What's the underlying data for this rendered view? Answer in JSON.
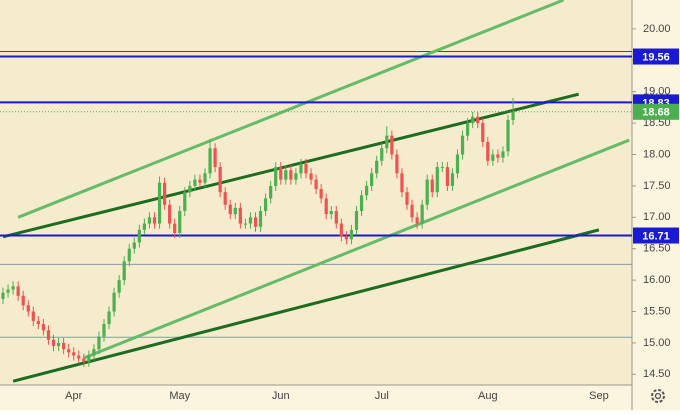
{
  "chart_data": {
    "type": "candlestick",
    "categories": [
      null,
      null,
      null,
      null,
      null,
      null,
      null,
      null,
      null,
      null,
      null,
      null,
      null,
      null,
      "Apr",
      null,
      null,
      null,
      null,
      null,
      null,
      null,
      null,
      null,
      null,
      null,
      null,
      null,
      null,
      null,
      null,
      null,
      null,
      null,
      null,
      "May",
      null,
      null,
      null,
      null,
      null,
      null,
      null,
      null,
      null,
      null,
      null,
      null,
      null,
      null,
      null,
      null,
      null,
      null,
      null,
      "Jun",
      null,
      null,
      null,
      null,
      null,
      null,
      null,
      null,
      null,
      null,
      null,
      null,
      null,
      null,
      null,
      null,
      null,
      null,
      null,
      "Jul",
      null,
      null,
      null,
      null,
      null,
      null,
      null,
      null,
      null,
      null,
      null,
      null,
      null,
      null,
      null,
      null,
      null,
      null,
      null,
      null,
      "Aug",
      null,
      null,
      null,
      null,
      null,
      null,
      null,
      null,
      null,
      null,
      null,
      null,
      null,
      null,
      null,
      null,
      null,
      null,
      null,
      null,
      null,
      "Sep"
    ],
    "open": [
      15.7,
      15.8,
      15.85,
      15.9,
      15.75,
      15.6,
      15.5,
      15.35,
      15.3,
      15.2,
      15.05,
      14.95,
      15.0,
      14.9,
      14.85,
      14.8,
      14.75,
      14.7,
      14.8,
      14.9,
      15.1,
      15.3,
      15.5,
      15.8,
      16.0,
      16.3,
      16.5,
      16.6,
      16.8,
      16.9,
      17.0,
      16.9,
      17.55,
      17.2,
      16.9,
      16.75,
      17.1,
      17.4,
      17.5,
      17.6,
      17.55,
      17.7,
      18.1,
      17.8,
      17.4,
      17.2,
      17.05,
      17.15,
      16.9,
      16.9,
      17.0,
      16.85,
      17.1,
      17.3,
      17.5,
      17.8,
      17.6,
      17.75,
      17.6,
      17.7,
      17.85,
      17.7,
      17.6,
      17.45,
      17.3,
      17.05,
      17.1,
      16.9,
      16.7,
      16.65,
      16.8,
      17.1,
      17.35,
      17.5,
      17.7,
      17.9,
      18.1,
      18.3,
      18.0,
      17.7,
      17.4,
      17.2,
      17.0,
      16.9,
      17.2,
      17.6,
      17.4,
      17.8,
      17.8,
      17.5,
      17.7,
      18.0,
      18.3,
      18.5,
      18.6,
      18.5,
      18.2,
      17.9,
      18.0,
      17.95,
      18.05,
      18.55,
      null,
      null,
      null,
      null,
      null,
      null,
      null,
      null,
      null,
      null,
      null,
      null,
      null,
      null,
      null,
      null,
      null
    ],
    "high": [
      15.88,
      15.93,
      15.98,
      15.98,
      15.83,
      15.68,
      15.58,
      15.43,
      15.38,
      15.28,
      15.13,
      15.08,
      15.08,
      14.98,
      14.93,
      14.88,
      14.83,
      14.88,
      14.98,
      15.18,
      15.38,
      15.58,
      15.88,
      16.08,
      16.38,
      16.58,
      16.68,
      16.88,
      16.98,
      17.08,
      17.08,
      17.65,
      17.63,
      17.28,
      16.98,
      17.18,
      17.48,
      17.58,
      17.68,
      17.68,
      17.78,
      18.25,
      18.18,
      17.88,
      17.48,
      17.28,
      17.23,
      17.23,
      16.98,
      17.08,
      17.08,
      17.18,
      17.38,
      17.58,
      17.88,
      17.88,
      17.83,
      17.83,
      17.78,
      17.93,
      17.93,
      17.78,
      17.68,
      17.53,
      17.38,
      17.18,
      17.18,
      16.98,
      16.78,
      16.88,
      17.18,
      17.43,
      17.58,
      17.78,
      17.98,
      18.18,
      18.45,
      18.38,
      18.08,
      17.78,
      17.48,
      17.28,
      17.08,
      17.28,
      17.68,
      17.68,
      17.88,
      17.88,
      17.88,
      17.78,
      18.08,
      18.38,
      18.58,
      18.68,
      18.68,
      18.58,
      18.28,
      18.08,
      18.08,
      18.13,
      18.63,
      18.9,
      null,
      null,
      null,
      null,
      null,
      null,
      null,
      null,
      null,
      null,
      null,
      null,
      null,
      null,
      null,
      null,
      null
    ],
    "low": [
      15.62,
      15.72,
      15.77,
      15.67,
      15.52,
      15.42,
      15.27,
      15.22,
      15.12,
      14.97,
      14.87,
      14.87,
      14.82,
      14.77,
      14.72,
      14.67,
      14.62,
      14.62,
      14.72,
      14.82,
      15.02,
      15.22,
      15.42,
      15.72,
      15.92,
      16.22,
      16.42,
      16.52,
      16.72,
      16.82,
      16.82,
      16.82,
      17.12,
      16.82,
      16.67,
      16.67,
      17.02,
      17.32,
      17.42,
      17.47,
      17.47,
      17.62,
      17.72,
      17.32,
      17.12,
      16.97,
      16.97,
      16.82,
      16.82,
      16.82,
      16.77,
      16.77,
      17.02,
      17.22,
      17.42,
      17.52,
      17.52,
      17.52,
      17.52,
      17.62,
      17.62,
      17.52,
      17.37,
      17.22,
      16.97,
      16.97,
      16.82,
      16.62,
      16.57,
      16.57,
      16.72,
      17.02,
      17.27,
      17.42,
      17.62,
      17.82,
      18.02,
      17.92,
      17.62,
      17.32,
      17.12,
      16.92,
      16.82,
      16.82,
      17.12,
      17.32,
      17.32,
      17.72,
      17.42,
      17.42,
      17.62,
      17.92,
      18.22,
      18.42,
      18.42,
      18.12,
      17.82,
      17.82,
      17.87,
      17.87,
      17.97,
      18.47,
      null,
      null,
      null,
      null,
      null,
      null,
      null,
      null,
      null,
      null,
      null,
      null,
      null,
      null,
      null,
      null,
      null
    ],
    "close": [
      15.8,
      15.85,
      15.9,
      15.75,
      15.6,
      15.5,
      15.35,
      15.3,
      15.2,
      15.05,
      14.95,
      15.0,
      14.9,
      14.85,
      14.8,
      14.75,
      14.7,
      14.8,
      14.9,
      15.1,
      15.3,
      15.5,
      15.8,
      16.0,
      16.3,
      16.5,
      16.6,
      16.8,
      16.9,
      17.0,
      16.9,
      17.55,
      17.2,
      16.9,
      16.75,
      17.1,
      17.4,
      17.5,
      17.6,
      17.55,
      17.7,
      18.1,
      17.8,
      17.4,
      17.2,
      17.05,
      17.15,
      16.9,
      16.9,
      17.0,
      16.85,
      17.1,
      17.3,
      17.5,
      17.8,
      17.6,
      17.75,
      17.6,
      17.7,
      17.85,
      17.7,
      17.6,
      17.45,
      17.3,
      17.05,
      17.1,
      16.9,
      16.7,
      16.65,
      16.8,
      17.1,
      17.35,
      17.5,
      17.7,
      17.9,
      18.1,
      18.3,
      18.0,
      17.7,
      17.4,
      17.2,
      17.0,
      16.9,
      17.2,
      17.6,
      17.4,
      17.8,
      17.8,
      17.5,
      17.7,
      18.0,
      18.3,
      18.5,
      18.6,
      18.5,
      18.2,
      17.9,
      18.0,
      17.95,
      18.05,
      18.55,
      18.68,
      null,
      null,
      null,
      null,
      null,
      null,
      null,
      null,
      null,
      null,
      null,
      null,
      null,
      null,
      null,
      null,
      null
    ],
    "up_color": "#4caf50",
    "down_color": "#ef5350",
    "ylim": [
      14.33,
      20.46
    ],
    "yticks": [
      {
        "value": 14.5,
        "label": "14.50"
      },
      {
        "value": 15.0,
        "label": "15.00"
      },
      {
        "value": 15.5,
        "label": "15.50"
      },
      {
        "value": 16.0,
        "label": "16.00"
      },
      {
        "value": 16.5,
        "label": "16.50"
      },
      {
        "value": 17.0,
        "label": "17.00"
      },
      {
        "value": 17.5,
        "label": "17.50"
      },
      {
        "value": 18.0,
        "label": "18.00"
      },
      {
        "value": 18.5,
        "label": "18.50"
      },
      {
        "value": 19.0,
        "label": "19.00"
      },
      {
        "value": 19.5,
        "label": "19.50"
      },
      {
        "value": 20.0,
        "label": "20.00"
      }
    ],
    "levels": [
      {
        "value": 19.56,
        "color": "#1a1ad4"
      },
      {
        "value": 18.83,
        "color": "#1a1ad4"
      },
      {
        "value": 16.71,
        "color": "#1a1ad4"
      }
    ],
    "guides": [
      {
        "value": 19.64,
        "color": "#3a3ad8"
      },
      {
        "value": 16.25,
        "color": "#8a9aa8"
      },
      {
        "value": 15.09,
        "color": "#7aa0c0"
      }
    ],
    "last_price": {
      "value": 18.68,
      "color": "#4caf50"
    },
    "trend_lines": [
      {
        "from": [
          3,
          17.0
        ],
        "to": [
          111,
          20.46
        ],
        "color": "#66bb6a"
      },
      {
        "from": [
          0,
          16.69
        ],
        "to": [
          114,
          18.96
        ],
        "color": "#1e6b22"
      },
      {
        "from": [
          16,
          14.76
        ],
        "to": [
          124,
          18.23
        ],
        "color": "#66bb6a"
      },
      {
        "from": [
          2,
          14.39
        ],
        "to": [
          118,
          16.8
        ],
        "color": "#1e6b22"
      }
    ]
  }
}
